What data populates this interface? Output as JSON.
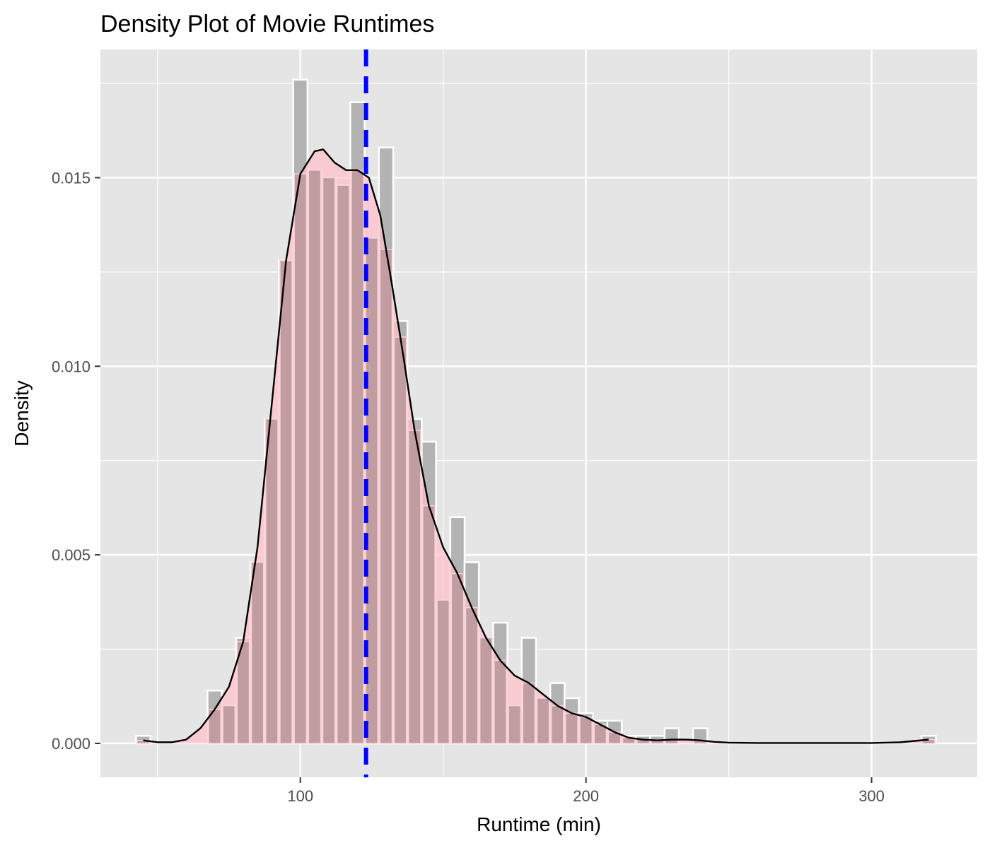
{
  "chart_data": {
    "type": "histogram+density",
    "title": "Density Plot of Movie Runtimes",
    "xlabel": "Runtime (min)",
    "ylabel": "Density",
    "xlim": [
      30,
      337
    ],
    "ylim": [
      -0.0009,
      0.0184
    ],
    "x_ticks": [
      100,
      200,
      300
    ],
    "x_tick_labels": [
      "100",
      "200",
      "300"
    ],
    "y_ticks": [
      0.0,
      0.005,
      0.01,
      0.015
    ],
    "y_tick_labels": [
      "0.000",
      "0.005",
      "0.010",
      "0.015"
    ],
    "grid": true,
    "mean_line": {
      "x": 123,
      "color": "#0000ff",
      "style": "dashed"
    },
    "colors": {
      "panel": "#e5e5e5",
      "grid": "#ffffff",
      "hist_fill": "#b3b3b3",
      "density_fill": "#ffc0cb",
      "density_line": "#000000",
      "mean_line": "#0000ff"
    },
    "histogram": {
      "bin_width": 5,
      "bins": [
        {
          "x0": 42.5,
          "density": 0.0002
        },
        {
          "x0": 67.5,
          "density": 0.0014
        },
        {
          "x0": 72.5,
          "density": 0.001
        },
        {
          "x0": 77.5,
          "density": 0.0028
        },
        {
          "x0": 82.5,
          "density": 0.0048
        },
        {
          "x0": 87.5,
          "density": 0.0086
        },
        {
          "x0": 92.5,
          "density": 0.0128
        },
        {
          "x0": 97.5,
          "density": 0.0176
        },
        {
          "x0": 102.5,
          "density": 0.0152
        },
        {
          "x0": 107.5,
          "density": 0.015
        },
        {
          "x0": 112.5,
          "density": 0.0148
        },
        {
          "x0": 117.5,
          "density": 0.017
        },
        {
          "x0": 122.5,
          "density": 0.0134
        },
        {
          "x0": 127.5,
          "density": 0.0158
        },
        {
          "x0": 132.5,
          "density": 0.0112
        },
        {
          "x0": 137.5,
          "density": 0.0086
        },
        {
          "x0": 142.5,
          "density": 0.008
        },
        {
          "x0": 147.5,
          "density": 0.0038
        },
        {
          "x0": 152.5,
          "density": 0.006
        },
        {
          "x0": 157.5,
          "density": 0.0048
        },
        {
          "x0": 162.5,
          "density": 0.0028
        },
        {
          "x0": 167.5,
          "density": 0.0032
        },
        {
          "x0": 172.5,
          "density": 0.001
        },
        {
          "x0": 177.5,
          "density": 0.0028
        },
        {
          "x0": 182.5,
          "density": 0.0012
        },
        {
          "x0": 187.5,
          "density": 0.0016
        },
        {
          "x0": 192.5,
          "density": 0.0012
        },
        {
          "x0": 197.5,
          "density": 0.0008
        },
        {
          "x0": 202.5,
          "density": 0.0006
        },
        {
          "x0": 207.5,
          "density": 0.0006
        },
        {
          "x0": 212.5,
          "density": 0.0002
        },
        {
          "x0": 217.5,
          "density": 0.0002
        },
        {
          "x0": 222.5,
          "density": 0.0002
        },
        {
          "x0": 227.5,
          "density": 0.0004
        },
        {
          "x0": 237.5,
          "density": 0.0004
        },
        {
          "x0": 317.5,
          "density": 0.0002
        }
      ]
    },
    "density_curve": {
      "x": [
        45,
        50,
        55,
        60,
        65,
        70,
        75,
        80,
        85,
        90,
        95,
        100,
        105,
        108,
        112,
        116,
        120,
        124,
        128,
        132,
        136,
        140,
        145,
        150,
        155,
        160,
        165,
        170,
        175,
        180,
        185,
        190,
        195,
        200,
        205,
        210,
        215,
        220,
        225,
        230,
        235,
        240,
        245,
        250,
        260,
        280,
        300,
        310,
        320
      ],
      "y": [
        8e-05,
        3e-05,
        3e-05,
        0.0001,
        0.0004,
        0.0009,
        0.0015,
        0.0027,
        0.0052,
        0.009,
        0.0128,
        0.0151,
        0.0157,
        0.01575,
        0.0154,
        0.0152,
        0.0152,
        0.015,
        0.014,
        0.0122,
        0.0103,
        0.0083,
        0.0063,
        0.0052,
        0.0045,
        0.0036,
        0.0028,
        0.0022,
        0.0018,
        0.0016,
        0.0013,
        0.001,
        0.0008,
        0.0007,
        0.0005,
        0.0003,
        0.00015,
        0.0001,
        8e-05,
        0.0001,
        0.0001,
        8e-05,
        4e-05,
        2e-05,
        1e-05,
        1e-05,
        1e-05,
        3e-05,
        0.0001
      ]
    }
  }
}
